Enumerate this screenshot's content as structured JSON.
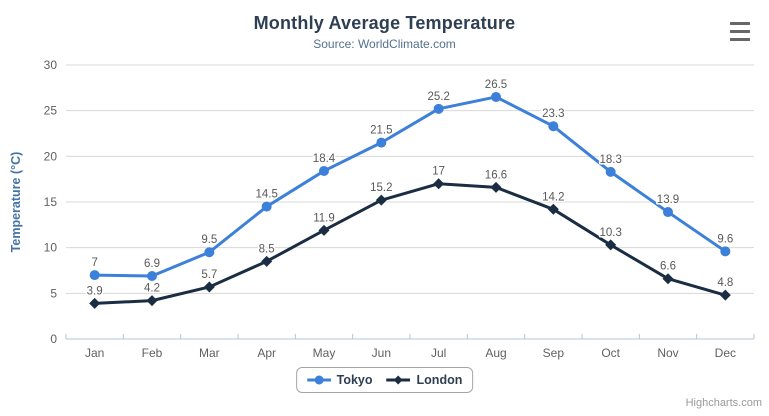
{
  "header": {
    "title": "Monthly Average Temperature",
    "subtitle": "Source: WorldClimate.com"
  },
  "chart_data": {
    "type": "line",
    "title": "Monthly Average Temperature",
    "subtitle": "Source: WorldClimate.com",
    "categories": [
      "Jan",
      "Feb",
      "Mar",
      "Apr",
      "May",
      "Jun",
      "Jul",
      "Aug",
      "Sep",
      "Oct",
      "Nov",
      "Dec"
    ],
    "series": [
      {
        "name": "Tokyo",
        "color": "#3c80d9",
        "marker": "circle",
        "values": [
          7,
          6.9,
          9.5,
          14.5,
          18.4,
          21.5,
          25.2,
          26.5,
          23.3,
          18.3,
          13.9,
          9.6
        ]
      },
      {
        "name": "London",
        "color": "#1b2d42",
        "marker": "diamond",
        "values": [
          3.9,
          4.2,
          5.7,
          8.5,
          11.9,
          15.2,
          17,
          16.6,
          14.2,
          10.3,
          6.6,
          4.8
        ]
      }
    ],
    "xlabel": "",
    "ylabel": "Temperature (°C)",
    "ylim": [
      0,
      30
    ],
    "ytick_step": 5,
    "yticks": [
      0,
      5,
      10,
      15,
      20,
      25,
      30
    ],
    "grid": true,
    "data_labels": true,
    "legend_position": "bottom"
  },
  "legend": {
    "items": [
      "Tokyo",
      "London"
    ]
  },
  "credits": {
    "label": "Highcharts.com"
  },
  "menu": {
    "icon": "hamburger-icon",
    "tooltip": "Chart context menu"
  },
  "colors": {
    "background": "#ffffff",
    "title": "#2f3f53",
    "subtitle": "#53718e",
    "axis_title": "#4573a7",
    "tick_label": "#606060",
    "data_label": "#595959",
    "grid": "#d8d8d8",
    "axis_line": "#b0c6da",
    "legend_border": "#a5a5a5",
    "legend_text": "#2f3f53",
    "credits": "#999999",
    "menu": "#666666"
  }
}
